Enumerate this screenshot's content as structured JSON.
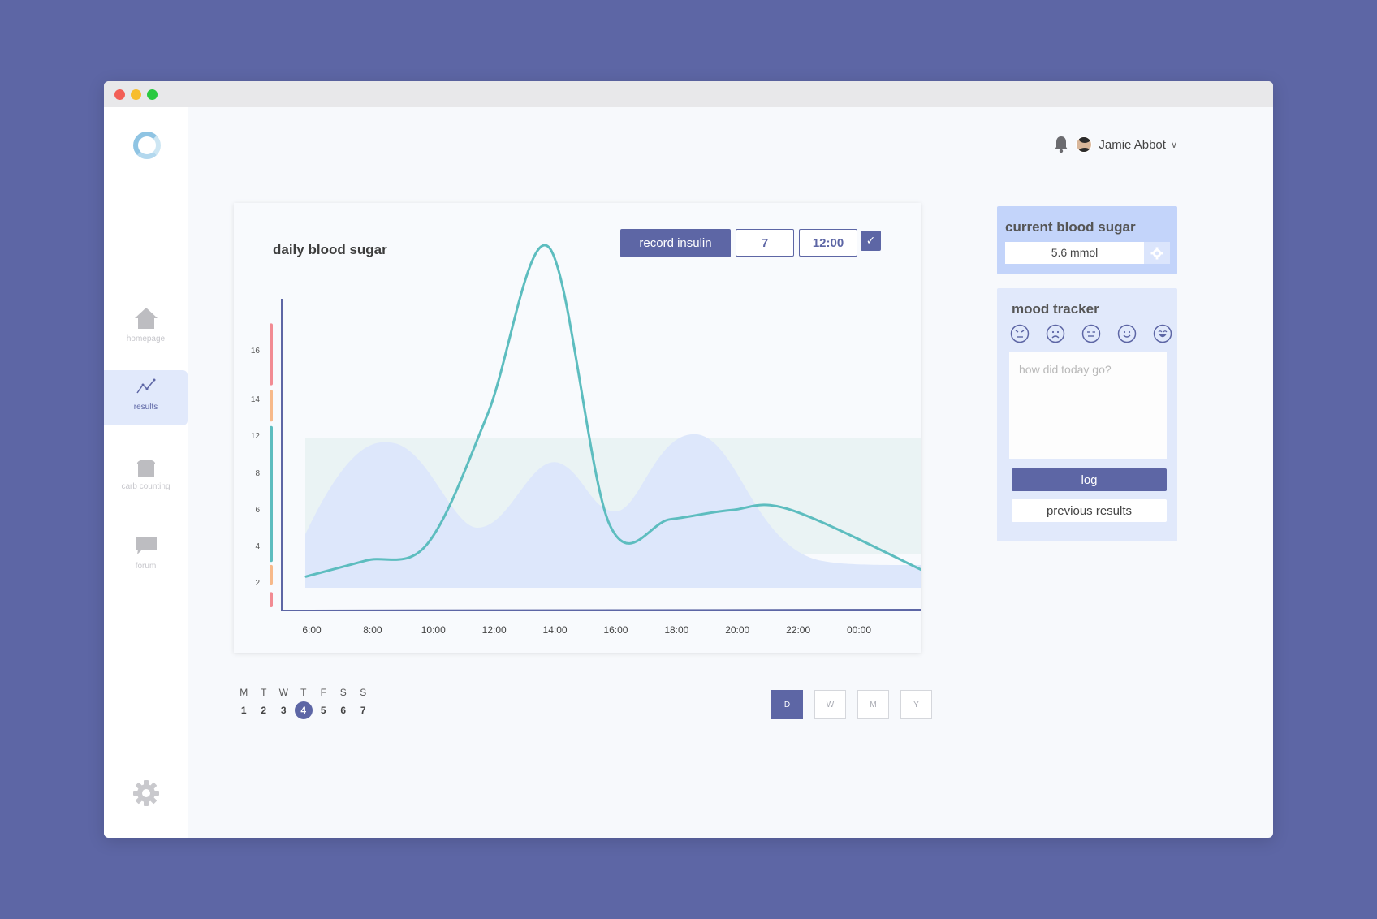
{
  "user": {
    "name": "Jamie Abbot"
  },
  "sidebar": {
    "items": [
      {
        "label": "homepage",
        "icon": "home-icon"
      },
      {
        "label": "results",
        "icon": "chart-line-icon"
      },
      {
        "label": "carb counting",
        "icon": "bread-icon"
      },
      {
        "label": "forum",
        "icon": "chat-bubble-icon"
      }
    ],
    "active": "results"
  },
  "chart_card": {
    "title": "daily blood sugar",
    "record_button": "record insulin",
    "units_value": "7",
    "time_value": "12:00",
    "confirm_icon": "checkmark-icon"
  },
  "chart_data": {
    "type": "line",
    "title": "daily blood sugar",
    "x": [
      "6:00",
      "8:00",
      "10:00",
      "12:00",
      "14:00",
      "16:00",
      "18:00",
      "20:00",
      "22:00",
      "00:00"
    ],
    "y_ticks": [
      2,
      4,
      6,
      8,
      12,
      14,
      16
    ],
    "ylabel": "",
    "xlabel": "",
    "series": [
      {
        "values": [
          2.1,
          2.8,
          3.5,
          9.2,
          16.5,
          4.4,
          4.6,
          5.0,
          5.0,
          2.1
        ]
      }
    ],
    "target_band": [
      4,
      12
    ],
    "color_bands": [
      {
        "from": 0,
        "to": 1,
        "color": "#f28b93"
      },
      {
        "from": 1.5,
        "to": 2.8,
        "color": "#f7b98a"
      },
      {
        "from": 3,
        "to": 12,
        "color": "#5dbdbf"
      },
      {
        "from": 12.3,
        "to": 14.4,
        "color": "#f7b98a"
      },
      {
        "from": 14.7,
        "to": 18.8,
        "color": "#f28b93"
      }
    ],
    "line_color": "#5dbdbf",
    "axis_color": "#5d66a5"
  },
  "week": {
    "days": [
      "M",
      "T",
      "W",
      "T",
      "F",
      "S",
      "S"
    ],
    "dates": [
      "1",
      "2",
      "3",
      "4",
      "5",
      "6",
      "7"
    ],
    "selected_index": 3
  },
  "range": {
    "options": [
      "D",
      "W",
      "M",
      "Y"
    ],
    "active": "D"
  },
  "current_blood_sugar": {
    "title": "current blood sugar",
    "value": "5.6 mmol"
  },
  "mood_tracker": {
    "title": "mood tracker",
    "faces": [
      "angry-face-icon",
      "sad-face-icon",
      "neutral-face-icon",
      "smile-face-icon",
      "happy-face-icon"
    ],
    "placeholder": "how did today go?",
    "log_label": "log",
    "previous_label": "previous results"
  },
  "colors": {
    "background": "#5d66a5",
    "accent": "#5d66a5",
    "teal": "#5dbdbf",
    "card_blue": "#c3d4fa",
    "card_light": "#e1e9fb"
  }
}
